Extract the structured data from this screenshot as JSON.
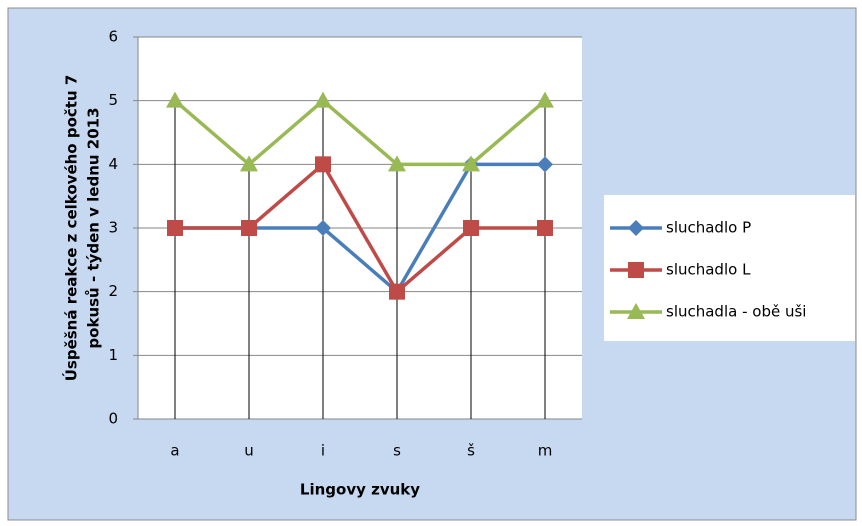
{
  "chart_data": {
    "type": "line",
    "ylabel": [
      "Úspěšná reakce z celkového počtu 7",
      "pokusů - týden v lednu 2013"
    ],
    "xlabel": "Lingovy zvuky",
    "categories": [
      "a",
      "u",
      "i",
      "s",
      "š",
      "m"
    ],
    "series": [
      {
        "name": "sluchadlo P",
        "color": "#4a7ebb",
        "marker": "diamond",
        "values": [
          3,
          3,
          3,
          2,
          4,
          4
        ]
      },
      {
        "name": "sluchadlo L",
        "color": "#be4b48",
        "marker": "square",
        "values": [
          3,
          3,
          4,
          2,
          3,
          3
        ]
      },
      {
        "name": "sluchadla - obě uši",
        "color": "#98b954",
        "marker": "triangle",
        "values": [
          5,
          4,
          5,
          4,
          4,
          5
        ]
      }
    ],
    "ylim": [
      0,
      6
    ],
    "yticks": [
      0,
      1,
      2,
      3,
      4,
      5,
      6
    ],
    "grid": true,
    "drop_lines": true,
    "legend": "right"
  }
}
